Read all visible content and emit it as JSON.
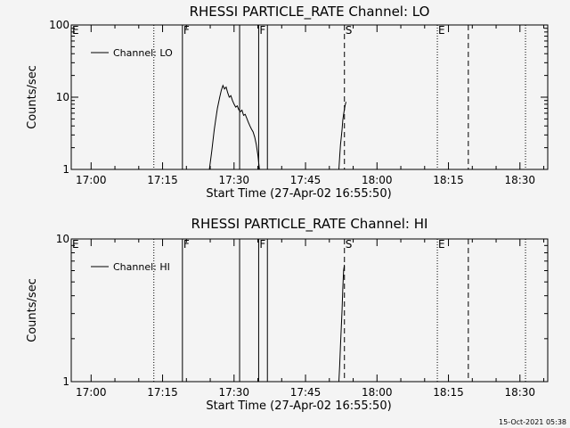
{
  "footer_timestamp": "15-Oct-2021 05:38",
  "chart_data": [
    {
      "type": "line",
      "title": "RHESSI PARTICLE_RATE Channel: LO",
      "xlabel": "Start Time (27-Apr-02 16:55:50)",
      "ylabel": "Counts/sec",
      "xaxis": {
        "type": "time",
        "start": "16:55:50",
        "end": "18:35:50",
        "ticks": [
          "17:00",
          "17:15",
          "17:30",
          "17:45",
          "18:00",
          "18:15",
          "18:30"
        ]
      },
      "yaxis": {
        "scale": "log",
        "ylim": [
          1,
          100
        ],
        "ticks": [
          "1",
          "10",
          "100"
        ]
      },
      "legend": {
        "label": "Channel: LO",
        "position": "top-left"
      },
      "markers": [
        {
          "label": "E",
          "time": "16:55:50",
          "style": "dotted"
        },
        {
          "label": "",
          "time": "17:13:10",
          "style": "dotted"
        },
        {
          "label": "F",
          "time": "17:19:10",
          "style": "solid"
        },
        {
          "label": "",
          "time": "17:31:10",
          "style": "solid"
        },
        {
          "label": "F",
          "time": "17:35:10",
          "style": "solid"
        },
        {
          "label": "",
          "time": "17:37:00",
          "style": "solid"
        },
        {
          "label": "S",
          "time": "17:53:10",
          "style": "dashed"
        },
        {
          "label": "E",
          "time": "18:12:40",
          "style": "dotted"
        },
        {
          "label": "",
          "time": "18:19:10",
          "style": "dashed"
        },
        {
          "label": "",
          "time": "18:31:10",
          "style": "dotted"
        }
      ],
      "series": [
        {
          "name": "Channel: LO",
          "segments": [
            [
              [
                "17:24:50",
                1.0
              ],
              [
                "17:25:20",
                1.8
              ],
              [
                "17:25:50",
                3.5
              ],
              [
                "17:26:10",
                5.0
              ],
              [
                "17:26:30",
                7.0
              ],
              [
                "17:27:00",
                10.0
              ],
              [
                "17:27:20",
                12.5
              ],
              [
                "17:27:40",
                14.5
              ],
              [
                "17:28:00",
                13.0
              ],
              [
                "17:28:20",
                13.8
              ],
              [
                "17:28:40",
                11.5
              ],
              [
                "17:29:00",
                10.0
              ],
              [
                "17:29:20",
                10.5
              ],
              [
                "17:29:40",
                9.0
              ],
              [
                "17:30:00",
                8.0
              ],
              [
                "17:30:20",
                7.3
              ],
              [
                "17:30:40",
                7.6
              ],
              [
                "17:31:00",
                6.7
              ],
              [
                "17:31:20",
                6.3
              ],
              [
                "17:31:40",
                6.6
              ],
              [
                "17:32:00",
                5.6
              ],
              [
                "17:32:20",
                5.8
              ],
              [
                "17:32:40",
                5.1
              ],
              [
                "17:33:00",
                4.5
              ],
              [
                "17:33:20",
                4.0
              ],
              [
                "17:33:40",
                3.6
              ],
              [
                "17:34:00",
                3.3
              ],
              [
                "17:34:20",
                2.8
              ],
              [
                "17:34:40",
                2.2
              ],
              [
                "17:35:00",
                1.6
              ],
              [
                "17:35:20",
                1.0
              ]
            ],
            [
              [
                "17:52:00",
                1.0
              ],
              [
                "17:52:10",
                1.5
              ],
              [
                "17:52:20",
                2.2
              ],
              [
                "17:52:30",
                2.8
              ],
              [
                "17:52:40",
                3.6
              ],
              [
                "17:52:50",
                4.8
              ],
              [
                "17:53:00",
                5.8
              ],
              [
                "17:53:10",
                6.8
              ],
              [
                "17:53:20",
                7.8
              ],
              [
                "17:53:30",
                8.6
              ]
            ]
          ]
        }
      ]
    },
    {
      "type": "line",
      "title": "RHESSI PARTICLE_RATE Channel: HI",
      "xlabel": "Start Time (27-Apr-02 16:55:50)",
      "ylabel": "Counts/sec",
      "xaxis": {
        "type": "time",
        "start": "16:55:50",
        "end": "18:35:50",
        "ticks": [
          "17:00",
          "17:15",
          "17:30",
          "17:45",
          "18:00",
          "18:15",
          "18:30"
        ]
      },
      "yaxis": {
        "scale": "log",
        "ylim": [
          1,
          10
        ],
        "ticks": [
          "1",
          "10"
        ]
      },
      "legend": {
        "label": "Channel: HI",
        "position": "top-left"
      },
      "markers": [
        {
          "label": "E",
          "time": "16:55:50",
          "style": "dotted"
        },
        {
          "label": "",
          "time": "17:13:10",
          "style": "dotted"
        },
        {
          "label": "F",
          "time": "17:19:10",
          "style": "solid"
        },
        {
          "label": "",
          "time": "17:31:10",
          "style": "solid"
        },
        {
          "label": "F",
          "time": "17:35:10",
          "style": "solid"
        },
        {
          "label": "",
          "time": "17:37:00",
          "style": "solid"
        },
        {
          "label": "S",
          "time": "17:53:10",
          "style": "dashed"
        },
        {
          "label": "E",
          "time": "18:12:40",
          "style": "dotted"
        },
        {
          "label": "",
          "time": "18:19:10",
          "style": "dashed"
        },
        {
          "label": "",
          "time": "18:31:10",
          "style": "dotted"
        }
      ],
      "series": [
        {
          "name": "Channel: HI",
          "segments": [
            [
              [
                "17:52:00",
                1.0
              ],
              [
                "17:52:10",
                1.3
              ],
              [
                "17:52:20",
                1.8
              ],
              [
                "17:52:30",
                2.4
              ],
              [
                "17:52:40",
                3.2
              ],
              [
                "17:52:50",
                4.5
              ],
              [
                "17:53:00",
                6.0
              ],
              [
                "17:53:10",
                6.6
              ]
            ]
          ]
        }
      ]
    }
  ]
}
